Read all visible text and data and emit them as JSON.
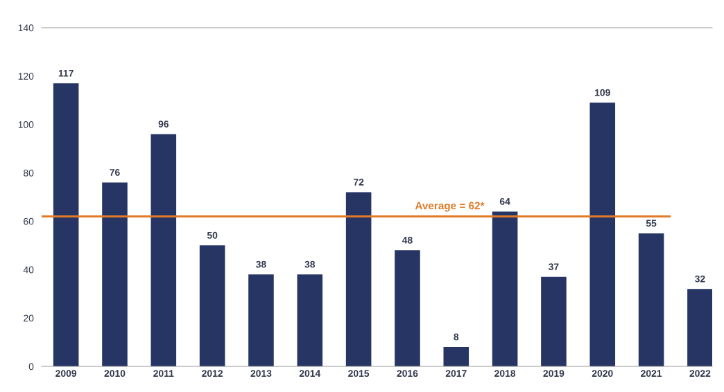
{
  "chart_data": {
    "type": "bar",
    "categories": [
      "2009",
      "2010",
      "2011",
      "2012",
      "2013",
      "2014",
      "2015",
      "2016",
      "2017",
      "2018",
      "2019",
      "2020",
      "2021",
      "2022"
    ],
    "values": [
      117,
      76,
      96,
      50,
      38,
      38,
      72,
      48,
      8,
      64,
      37,
      109,
      55,
      32
    ],
    "color": "#263563",
    "data_labels": true,
    "ylim": [
      0,
      140
    ],
    "yticks": [
      0,
      20,
      40,
      60,
      80,
      100,
      120,
      140
    ],
    "grid": false,
    "ref_lines": [
      {
        "axis": "y",
        "value": 62,
        "label": "Average = 62*",
        "color": "#e07b28",
        "line_style": "solid"
      }
    ]
  }
}
